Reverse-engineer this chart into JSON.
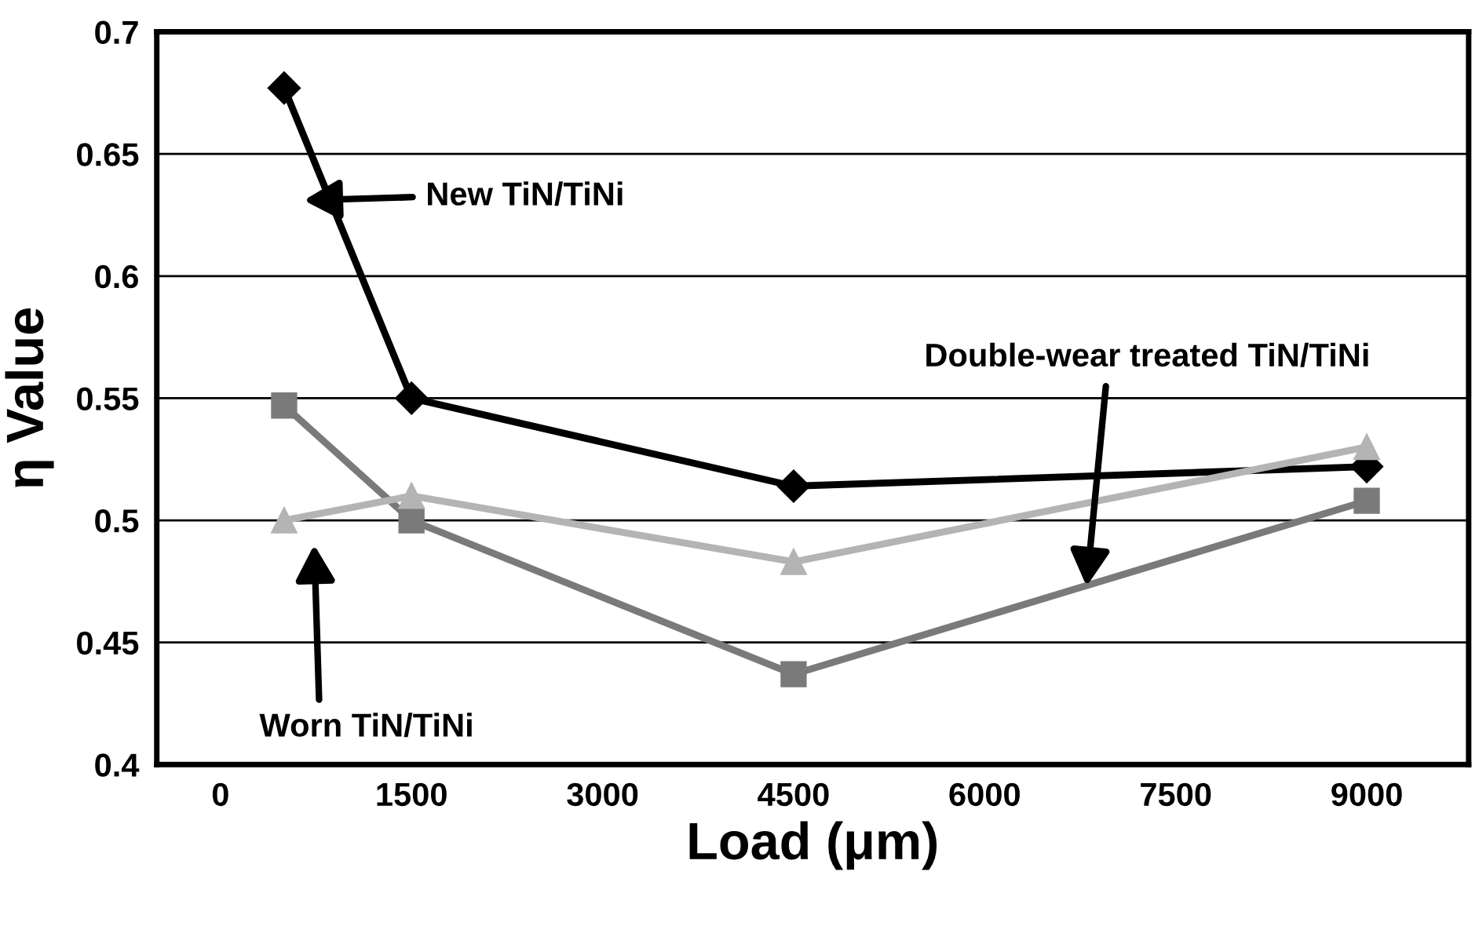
{
  "chart_data": {
    "type": "line",
    "xlabel": "Load (μm)",
    "ylabel": "η Value",
    "xlim": [
      -500,
      9800
    ],
    "xticks": [
      0,
      1500,
      3000,
      4500,
      6000,
      7500,
      9000
    ],
    "ylim": [
      0.4,
      0.7
    ],
    "yticks": [
      0.4,
      0.45,
      0.5,
      0.55,
      0.6,
      0.65,
      0.7
    ],
    "grid": "y",
    "legend": false,
    "series": [
      {
        "color": "#000000",
        "marker": "diamond",
        "x": [
          500,
          1500,
          4500,
          9000
        ],
        "values": [
          0.677,
          0.55,
          0.514,
          0.522
        ]
      },
      {
        "color": "#7a7a7a",
        "marker": "square",
        "x": [
          500,
          1500,
          4500,
          9000
        ],
        "values": [
          0.547,
          0.5,
          0.437,
          0.508
        ]
      },
      {
        "color": "#b4b4b4",
        "marker": "triangle",
        "x": [
          500,
          1500,
          4500,
          9000
        ],
        "values": [
          0.5,
          0.51,
          0.483,
          0.53
        ]
      }
    ],
    "annotations": [
      "New TiN/TiNi",
      {
        "text": "Double-wear treated TiN/TiNi",
        "x": 6800,
        "y": 0.473
      },
      "Worn TiN/TiNi"
    ]
  }
}
